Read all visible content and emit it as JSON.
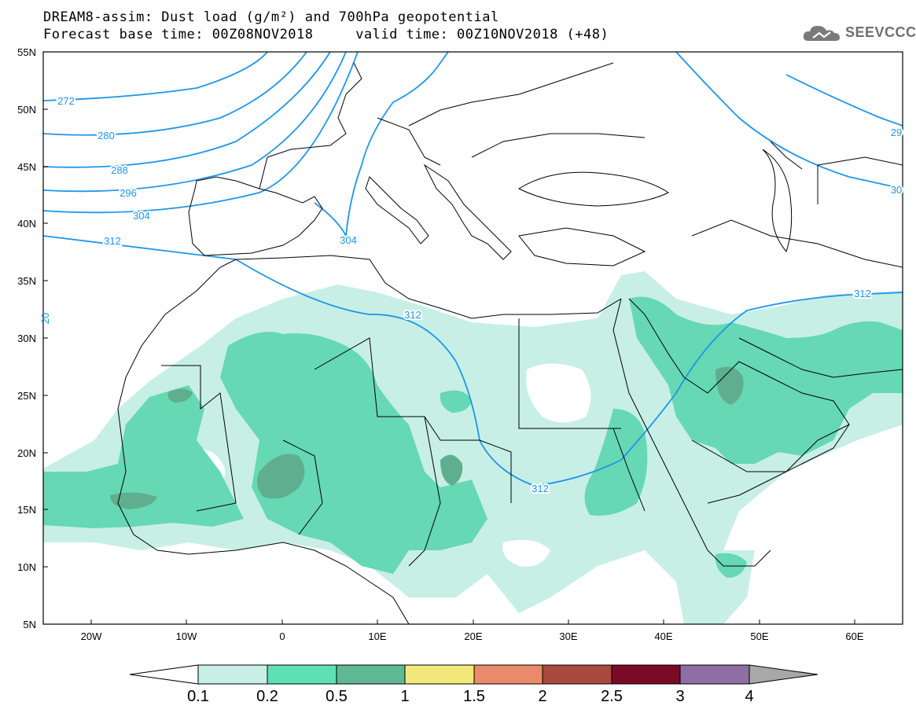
{
  "header": {
    "title_line1": "DREAM8-assim: Dust load (g/m²) and 700hPa geopotential",
    "title_line2": "Forecast base time: 00Z08NOV2018     valid time: 00Z10NOV2018 (+48)",
    "logo_text": "SEEVCCC"
  },
  "axes": {
    "lat_labels": [
      "55N",
      "50N",
      "45N",
      "40N",
      "35N",
      "30N",
      "25N",
      "20N",
      "15N",
      "10N",
      "5N"
    ],
    "lon_labels": [
      "20W",
      "10W",
      "0",
      "10E",
      "20E",
      "30E",
      "40E",
      "50E",
      "60E"
    ]
  },
  "contours": {
    "labels": [
      "272",
      "280",
      "288",
      "296",
      "304",
      "312",
      "304",
      "312",
      "312",
      "312",
      "29",
      "30",
      "20"
    ]
  },
  "colorbar": {
    "ticks": [
      "0.1",
      "0.2",
      "0.5",
      "1",
      "1.5",
      "2",
      "2.5",
      "3",
      "4"
    ],
    "colors": [
      "#ffffff",
      "#c7efe6",
      "#5ee0b7",
      "#5fb994",
      "#f2e97a",
      "#e98a6a",
      "#a84a3f",
      "#7a0a25",
      "#8e6ea3",
      "#a8a8a8"
    ]
  },
  "colors": {
    "dust_light": "#c7efe6",
    "dust_mid": "#66d8b3",
    "dust_dark": "#5fae8f",
    "contour": "#1e96ea",
    "border": "#000000"
  }
}
